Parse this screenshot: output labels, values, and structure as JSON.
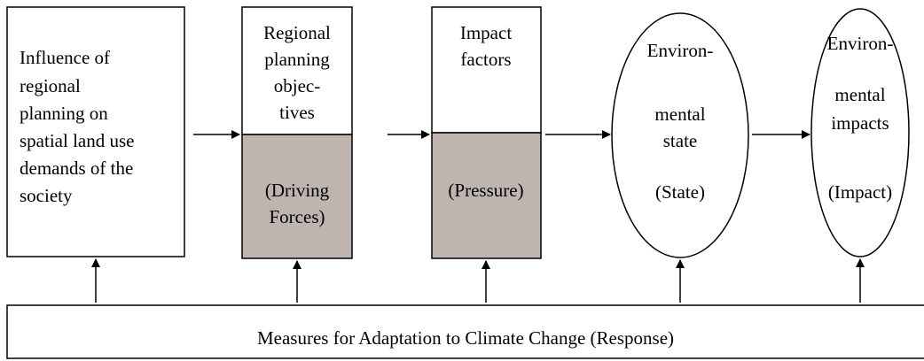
{
  "nodes": [
    {
      "lines": [
        "Influence of",
        "regional",
        "planning on",
        "spatial land use",
        "demands of the",
        "society"
      ]
    },
    {
      "lines": [
        "Regional",
        "planning",
        "objec-",
        "tives"
      ],
      "sub_lines": [
        "(Driving",
        "Forces)"
      ]
    },
    {
      "lines": [
        "Impact",
        "factors"
      ],
      "sub_lines": [
        "(Pressure)"
      ]
    },
    {
      "lines": [
        "Environ-",
        "mental",
        "state"
      ],
      "sub_lines": [
        "(State)"
      ]
    },
    {
      "lines": [
        "Environ-",
        "mental",
        "impacts"
      ],
      "sub_lines": [
        "(Impact)"
      ]
    }
  ],
  "response": "Measures for Adaptation to Climate Change (Response)"
}
